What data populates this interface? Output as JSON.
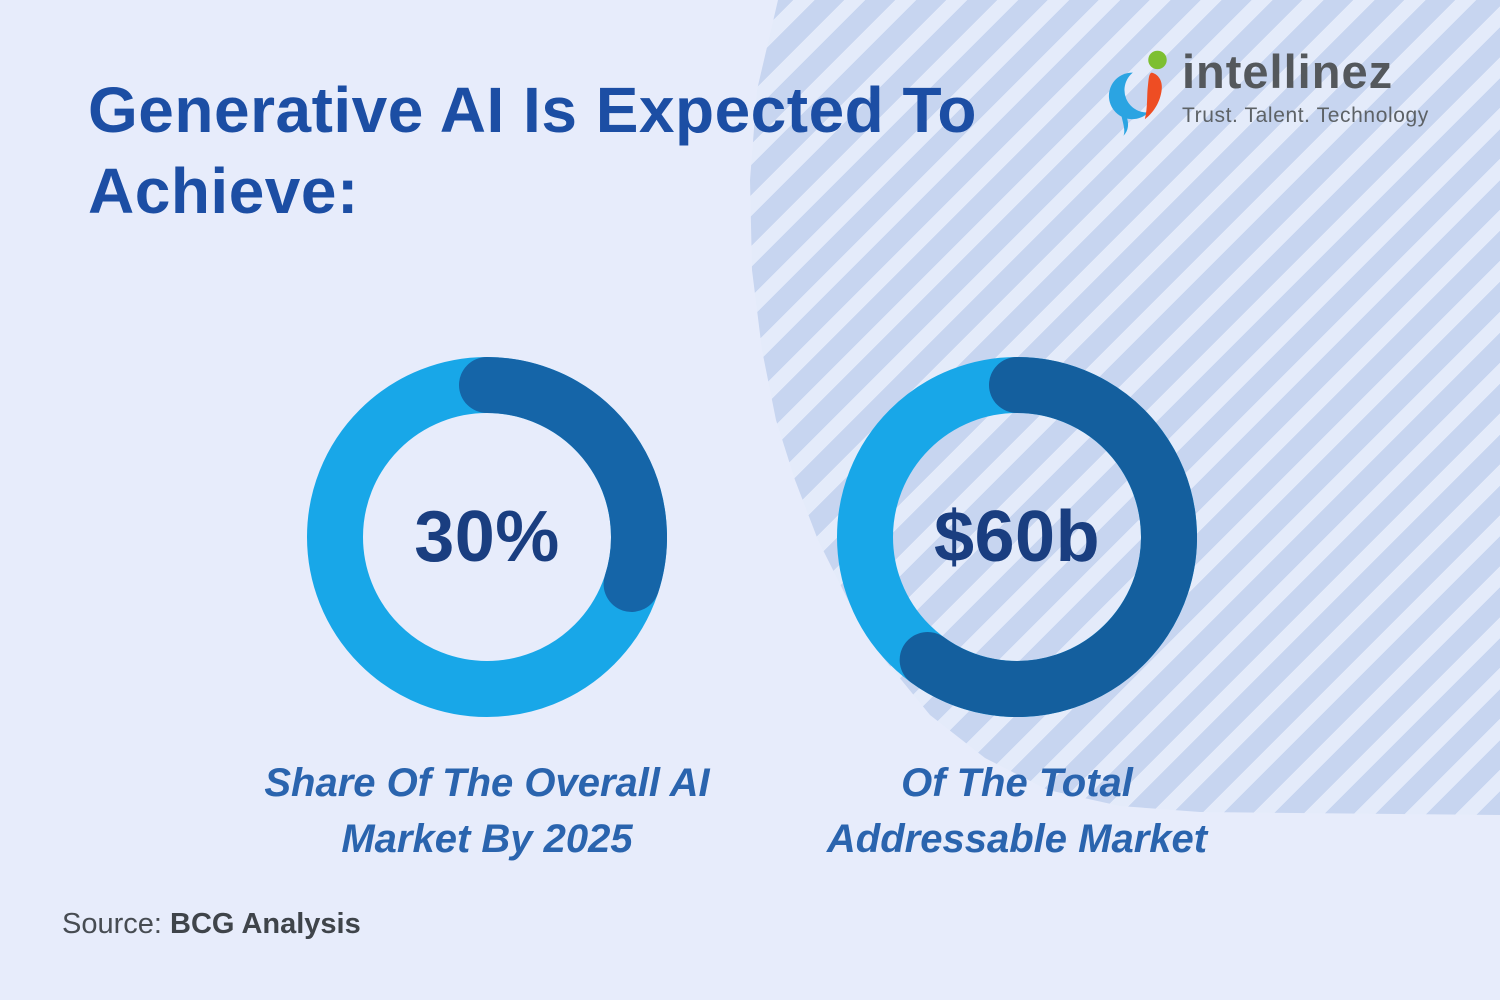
{
  "page": {
    "background_color": "#e7ecfb",
    "stripe_color": "#c7d5f0",
    "title_lines": [
      "Generative AI Is Expected To",
      "Achieve:"
    ],
    "title_color": "#1c4ea4",
    "source": {
      "prefix": "Source:",
      "name": "BCG Analysis"
    }
  },
  "logo": {
    "wordmark": "intellinez",
    "tagline": "Trust. Talent. Technology",
    "colors": {
      "blue": "#2ba4e2",
      "green": "#7dbf31",
      "orange": "#ee4d23",
      "text": "#54585c"
    }
  },
  "chart_data": [
    {
      "type": "pie",
      "style": "donut",
      "value_label": "30%",
      "caption_lines": [
        "Share Of The Overall AI",
        "Market By 2025"
      ],
      "segments": [
        {
          "name": "generative-ai-share",
          "value": 30,
          "color": "#1565a8"
        },
        {
          "name": "remainder",
          "value": 70,
          "color": "#18a7e8"
        }
      ],
      "start_angle_deg": 0,
      "direction": "clockwise",
      "legend": "none"
    },
    {
      "type": "pie",
      "style": "donut",
      "value_label": "$60b",
      "caption_lines": [
        "Of The Total",
        "Addressable Market"
      ],
      "segments": [
        {
          "name": "total-addressable-market",
          "value": 60,
          "color": "#145f9e"
        },
        {
          "name": "remainder",
          "value": 40,
          "color": "#18a7e8"
        }
      ],
      "start_angle_deg": 0,
      "direction": "clockwise",
      "legend": "none"
    }
  ]
}
